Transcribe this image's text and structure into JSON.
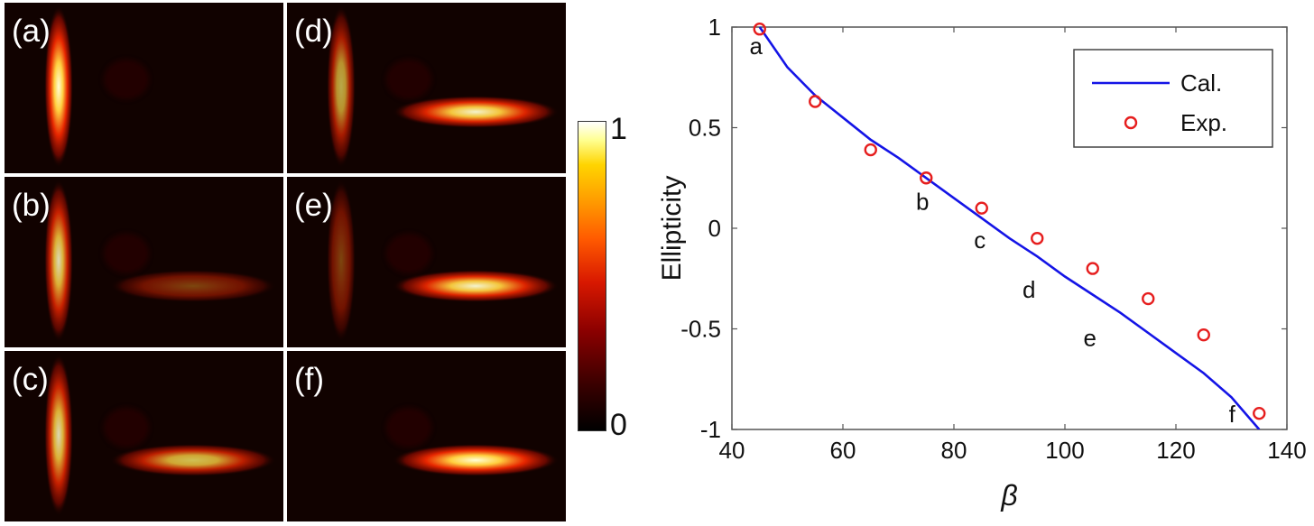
{
  "panels": [
    {
      "label": "(a)",
      "vertical_intensity": 1.0,
      "horizontal_intensity": 0.0
    },
    {
      "label": "(b)",
      "vertical_intensity": 0.85,
      "horizontal_intensity": 0.45
    },
    {
      "label": "(c)",
      "vertical_intensity": 0.85,
      "horizontal_intensity": 0.8
    },
    {
      "label": "(d)",
      "vertical_intensity": 0.7,
      "horizontal_intensity": 0.95
    },
    {
      "label": "(e)",
      "vertical_intensity": 0.45,
      "horizontal_intensity": 0.95
    },
    {
      "label": "(f)",
      "vertical_intensity": 0.0,
      "horizontal_intensity": 1.0
    }
  ],
  "colorbar": {
    "max_label": "1",
    "min_label": "0"
  },
  "colors": {
    "calc_line": "#1414e6",
    "exp_marker": "#e61e1e"
  },
  "chart_data": {
    "type": "line",
    "xlabel": "β",
    "ylabel": "Ellipticity",
    "xlim": [
      40,
      140
    ],
    "ylim": [
      -1,
      1
    ],
    "xticks": [
      40,
      60,
      80,
      100,
      120,
      140
    ],
    "yticks": [
      1,
      0.5,
      0,
      -0.5,
      -1
    ],
    "grid": false,
    "legend_position": "top-right",
    "series": [
      {
        "name": "Cal.",
        "style": "line",
        "x": [
          45,
          50,
          55,
          60,
          65,
          70,
          75,
          80,
          85,
          90,
          95,
          100,
          105,
          110,
          115,
          120,
          125,
          130,
          135
        ],
        "y": [
          1.0,
          0.8,
          0.66,
          0.55,
          0.44,
          0.35,
          0.25,
          0.15,
          0.05,
          -0.05,
          -0.14,
          -0.24,
          -0.33,
          -0.42,
          -0.52,
          -0.62,
          -0.72,
          -0.84,
          -1.0
        ]
      },
      {
        "name": "Exp.",
        "style": "markers",
        "x": [
          45,
          55,
          65,
          75,
          85,
          95,
          105,
          115,
          125,
          135
        ],
        "y": [
          0.99,
          0.63,
          0.39,
          0.25,
          0.1,
          -0.05,
          -0.2,
          -0.35,
          -0.53,
          -0.92
        ]
      }
    ],
    "annotations": [
      {
        "text": "a",
        "x": 45
      },
      {
        "text": "b",
        "x": 75
      },
      {
        "text": "c",
        "x": 85
      },
      {
        "text": "d",
        "x": 95
      },
      {
        "text": "e",
        "x": 105
      },
      {
        "text": "f",
        "x": 135
      }
    ]
  }
}
